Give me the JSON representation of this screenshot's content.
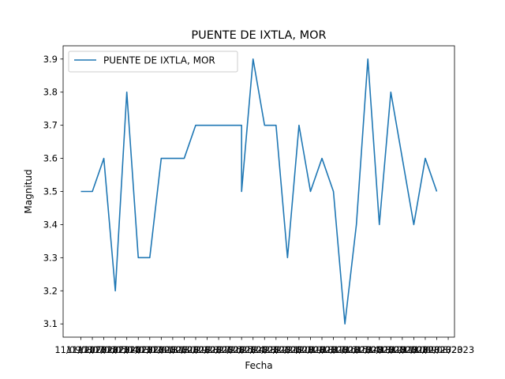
{
  "chart_data": {
    "type": "line",
    "title": "PUENTE DE IXTLA, MOR",
    "xlabel": "Fecha",
    "ylabel": "Magnitud",
    "ylim": [
      3.06,
      3.94
    ],
    "yticks": [
      "3.1",
      "3.2",
      "3.3",
      "3.4",
      "3.5",
      "3.6",
      "3.7",
      "3.8",
      "3.9"
    ],
    "grid": false,
    "legend_position": "top-left",
    "x_tick_labels": [
      "11/09/2023",
      "11/08/2023",
      "11/07/2023",
      "11/06/2023",
      "11/05/2023",
      "11/04/2023",
      "11/03/2023",
      "11/02/2023",
      "11/01/2023",
      "10/31/2023",
      "10/30/2023",
      "10/29/2023",
      "10/28/2023",
      "10/27/2023",
      "10/26/2023",
      "10/25/2023",
      "10/24/2023",
      "10/23/2023",
      "10/22/2023",
      "10/21/2023",
      "10/20/2023",
      "10/19/2023",
      "10/18/2023",
      "10/17/2023",
      "10/16/2023",
      "10/15/2023",
      "10/14/2023",
      "10/13/2023",
      "10/12/2023",
      "10/11/2023",
      "10/10/2023",
      "10/09/2023",
      "10/08/2023"
    ],
    "series": [
      {
        "name": "PUENTE DE IXTLA, MOR",
        "color": "#1f77b4",
        "points": [
          [
            0,
            3.5
          ],
          [
            1,
            3.5
          ],
          [
            2,
            3.6
          ],
          [
            3,
            3.2
          ],
          [
            4,
            3.8
          ],
          [
            5,
            3.3
          ],
          [
            6,
            3.3
          ],
          [
            7,
            3.6
          ],
          [
            8,
            3.6
          ],
          [
            9,
            3.6
          ],
          [
            10,
            3.7
          ],
          [
            11,
            3.7
          ],
          [
            12,
            3.7
          ],
          [
            13,
            3.7
          ],
          [
            14,
            3.7
          ],
          [
            14,
            3.5
          ],
          [
            15,
            3.9
          ],
          [
            16,
            3.7
          ],
          [
            17,
            3.7
          ],
          [
            18,
            3.3
          ],
          [
            19,
            3.7
          ],
          [
            20,
            3.5
          ],
          [
            21,
            3.6
          ],
          [
            22,
            3.5
          ],
          [
            23,
            3.1
          ],
          [
            24,
            3.4
          ],
          [
            25,
            3.9
          ],
          [
            26,
            3.4
          ],
          [
            27,
            3.8
          ],
          [
            28,
            3.6
          ],
          [
            29,
            3.4
          ],
          [
            30,
            3.6
          ],
          [
            31,
            3.5
          ]
        ]
      }
    ]
  }
}
